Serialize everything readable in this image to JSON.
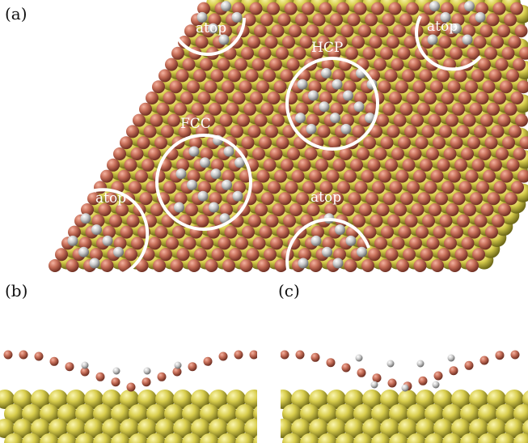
{
  "panel_labels": {
    "a": "(a)",
    "b": "(b)",
    "c": "(c)"
  },
  "site_labels": {
    "atop_top_left": "atop",
    "atop_top_right": "atop",
    "hcp": "HCP",
    "fcc": "FCC",
    "atop_bottom_left": "atop",
    "atop_bottom_right": "atop"
  },
  "colors": {
    "substrate_atom": "#d9cf52",
    "oxygen_atom": "#c8705a",
    "hydrogen_atom": "#c8c8c8",
    "site_ring": "#ffffff"
  }
}
